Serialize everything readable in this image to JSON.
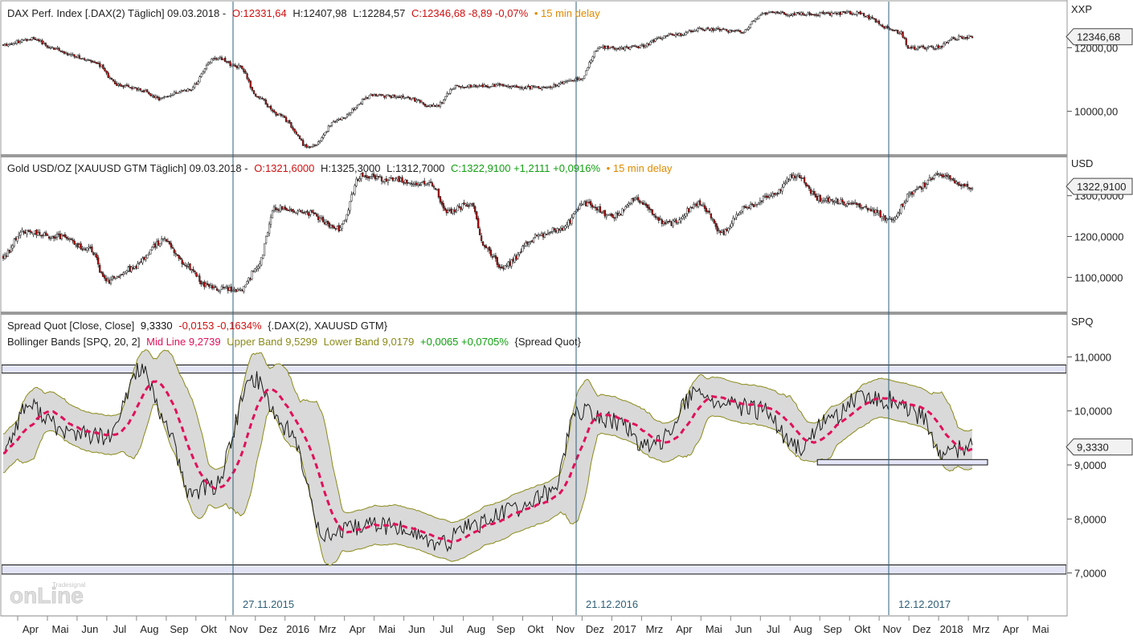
{
  "chart_data": [
    {
      "type": "candlestick",
      "panel": "dax",
      "header": {
        "name": "DAX Perf. Index [.DAX(2) Täglich] 09.03.2018 -",
        "open": "O:12331,64",
        "high": "H:12407,98",
        "low": "L:12284,57",
        "close_change": "C:12346,68 -8,89 -0,07%",
        "delay": "• 15 min delay"
      },
      "axis_unit": "XXP",
      "last_value": "12346,68",
      "y_ticks": [
        "12000,00",
        "10000,00"
      ],
      "ylim": [
        8700,
        13400
      ],
      "anchors": [
        [
          0,
          12100
        ],
        [
          18,
          12300
        ],
        [
          28,
          12000
        ],
        [
          42,
          11750
        ],
        [
          55,
          11500
        ],
        [
          68,
          10800
        ],
        [
          80,
          10700
        ],
        [
          92,
          10400
        ],
        [
          110,
          10700
        ],
        [
          125,
          11700
        ],
        [
          139,
          11400
        ],
        [
          151,
          10400
        ],
        [
          162,
          9900
        ],
        [
          181,
          8850
        ],
        [
          198,
          9750
        ],
        [
          218,
          10500
        ],
        [
          235,
          10450
        ],
        [
          255,
          10150
        ],
        [
          268,
          10800
        ],
        [
          290,
          10800
        ],
        [
          317,
          10750
        ],
        [
          340,
          11000
        ],
        [
          352,
          12000
        ],
        [
          372,
          12000
        ],
        [
          395,
          12400
        ],
        [
          415,
          12600
        ],
        [
          435,
          12500
        ],
        [
          450,
          13100
        ],
        [
          478,
          13050
        ],
        [
          502,
          13100
        ],
        [
          529,
          12500
        ],
        [
          535,
          12000
        ],
        [
          552,
          12000
        ],
        [
          560,
          12300
        ],
        [
          572,
          12346
        ]
      ],
      "color_up": "#2b2b2b",
      "color_down": "#c00000"
    },
    {
      "type": "candlestick",
      "panel": "gold",
      "header": {
        "name": "Gold USD/OZ [XAUUSD GTM Täglich] 09.03.2018 -",
        "open": "O:1321,6000",
        "high": "H:1325,3000",
        "low": "L:1312,7000",
        "close_change": "C:1322,9100 +1,2111 +0,0916%",
        "delay": "• 15 min delay"
      },
      "axis_unit": "USD",
      "last_value": "1322,9100",
      "y_ticks": [
        "1300,0000",
        "1200,0000",
        "1100,0000"
      ],
      "ylim": [
        1020,
        1390
      ],
      "anchors": [
        [
          0,
          1150
        ],
        [
          12,
          1210
        ],
        [
          35,
          1200
        ],
        [
          55,
          1170
        ],
        [
          65,
          1090
        ],
        [
          80,
          1120
        ],
        [
          102,
          1190
        ],
        [
          115,
          1130
        ],
        [
          130,
          1075
        ],
        [
          150,
          1070
        ],
        [
          160,
          1120
        ],
        [
          172,
          1270
        ],
        [
          190,
          1260
        ],
        [
          212,
          1220
        ],
        [
          226,
          1350
        ],
        [
          245,
          1340
        ],
        [
          270,
          1330
        ],
        [
          281,
          1260
        ],
        [
          295,
          1280
        ],
        [
          305,
          1170
        ],
        [
          315,
          1125
        ],
        [
          338,
          1200
        ],
        [
          352,
          1220
        ],
        [
          368,
          1280
        ],
        [
          385,
          1250
        ],
        [
          400,
          1290
        ],
        [
          420,
          1230
        ],
        [
          440,
          1280
        ],
        [
          454,
          1210
        ],
        [
          468,
          1270
        ],
        [
          485,
          1300
        ],
        [
          500,
          1350
        ],
        [
          517,
          1290
        ],
        [
          536,
          1280
        ],
        [
          550,
          1260
        ],
        [
          560,
          1240
        ],
        [
          575,
          1310
        ],
        [
          590,
          1350
        ],
        [
          612,
          1322
        ]
      ],
      "color_up": "#2b2b2b",
      "color_down": "#c00000"
    },
    {
      "type": "line",
      "panel": "spread",
      "header": {
        "spread": "Spread Quot [Close, Close]",
        "spread_value": "9,3330",
        "spread_change": "-0,0153 -0,1634%",
        "spread_sources": "{.DAX(2), XAUUSD GTM}",
        "bb_name": "Bollinger Bands [SPQ, 20, 2]",
        "mid": "Mid Line 9,2739",
        "upper": "Upper Band 9,5299",
        "lower": "Lower Band 9,0179",
        "bb_change": "+0,0065 +0,0705%",
        "bb_source": "{Spread Quot}"
      },
      "axis_unit": "SPQ",
      "last_value": "9,3330",
      "y_ticks": [
        "11,0000",
        "10,0000",
        "9,0000",
        "8,0000",
        "7,0000"
      ],
      "ylim": [
        6.25,
        11.75
      ],
      "anchors": [
        [
          0,
          9.3
        ],
        [
          15,
          10.1
        ],
        [
          40,
          9.6
        ],
        [
          65,
          9.5
        ],
        [
          85,
          10.8
        ],
        [
          100,
          9.8
        ],
        [
          115,
          8.5
        ],
        [
          130,
          8.6
        ],
        [
          155,
          10.6
        ],
        [
          175,
          9.7
        ],
        [
          200,
          7.7
        ],
        [
          230,
          7.9
        ],
        [
          250,
          7.8
        ],
        [
          270,
          7.5
        ],
        [
          290,
          7.9
        ],
        [
          320,
          8.2
        ],
        [
          340,
          8.5
        ],
        [
          355,
          10.0
        ],
        [
          380,
          9.8
        ],
        [
          400,
          9.3
        ],
        [
          430,
          10.3
        ],
        [
          450,
          10.1
        ],
        [
          470,
          10.0
        ],
        [
          492,
          9.3
        ],
        [
          510,
          9.8
        ],
        [
          528,
          10.2
        ],
        [
          550,
          10.2
        ],
        [
          568,
          9.9
        ],
        [
          580,
          9.2
        ],
        [
          600,
          9.33
        ]
      ],
      "series": [
        {
          "name": "Spread Quot",
          "color": "#1a1a1a"
        },
        {
          "name": "Mid Line",
          "color": "#e0105a"
        },
        {
          "name": "Upper Band",
          "color": "#8a8a1a"
        },
        {
          "name": "Lower Band",
          "color": "#8a8a1a"
        }
      ],
      "bands": [
        {
          "from": 10.7,
          "to": 10.85
        },
        {
          "from": 6.98,
          "to": 7.15
        }
      ],
      "support_box": {
        "x_from": "Aug",
        "x_to": "Mrz",
        "from": 9.0,
        "to": 9.1
      }
    }
  ],
  "x_axis": {
    "labels": [
      "Apr",
      "Mai",
      "Jun",
      "Jul",
      "Aug",
      "Sep",
      "Okt",
      "Nov",
      "Dez",
      "2016",
      "Mrz",
      "Apr",
      "Mai",
      "Jun",
      "Jul",
      "Aug",
      "Sep",
      "Okt",
      "Nov",
      "Dez",
      "2017",
      "Mrz",
      "Apr",
      "Mai",
      "Jun",
      "Jul",
      "Aug",
      "Sep",
      "Okt",
      "Nov",
      "Dez",
      "2018",
      "Mrz",
      "Apr",
      "Mai"
    ]
  },
  "markers": [
    {
      "label": "27.11.2015"
    },
    {
      "label": "21.12.2016"
    },
    {
      "label": "12.12.2017"
    }
  ],
  "logo": "onLine",
  "logo_sub": "Tradesignal"
}
